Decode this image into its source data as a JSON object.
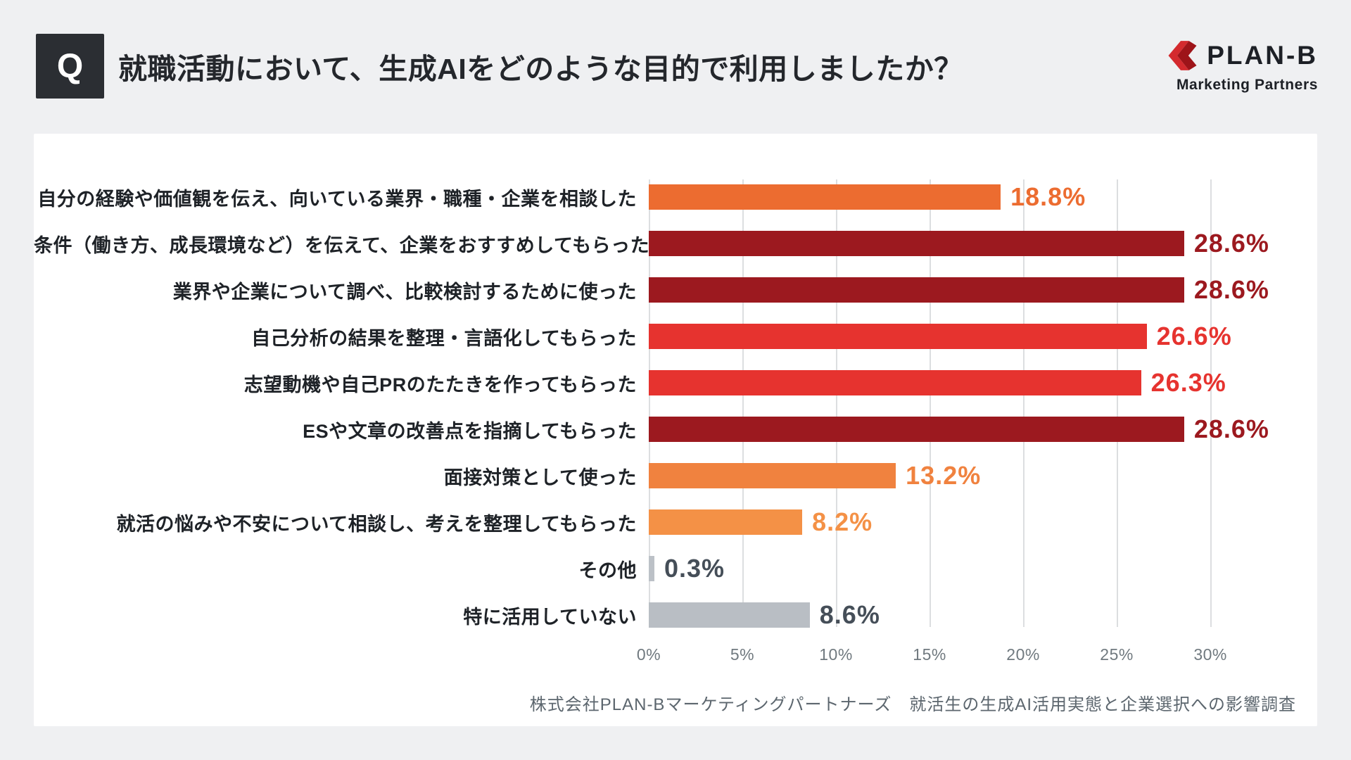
{
  "header": {
    "q_label": "Q",
    "title": "就職活動において、生成AIをどのような目的で利用しましたか？"
  },
  "logo": {
    "name": "PLAN-B",
    "subtitle": "Marketing Partners",
    "icon": "double-chevron-left",
    "accent": "#D42A2E",
    "accent_dark": "#9E1419"
  },
  "chart_data": {
    "type": "bar",
    "orientation": "horizontal",
    "unit": "%",
    "xlim": [
      0,
      35.71
    ],
    "grid": true,
    "ticks": [
      0,
      5,
      10,
      15,
      20,
      25,
      30
    ],
    "tick_labels": [
      "0%",
      "5%",
      "10%",
      "15%",
      "20%",
      "25%",
      "30%"
    ],
    "rows": [
      {
        "label": "自分の経験や価値観を伝え、向いている業界・職種・企業を相談した",
        "value": 18.8,
        "value_label": "18.8%",
        "color": "#EC6C30",
        "value_color": "#EC6C30"
      },
      {
        "label": "条件（働き方、成長環境など）を伝えて、企業をおすすめしてもらった",
        "value": 28.6,
        "value_label": "28.6%",
        "color": "#9C191F",
        "value_color": "#9C191F"
      },
      {
        "label": "業界や企業について調べ、比較検討するために使った",
        "value": 28.6,
        "value_label": "28.6%",
        "color": "#9C191F",
        "value_color": "#9C191F"
      },
      {
        "label": "自己分析の結果を整理・言語化してもらった",
        "value": 26.6,
        "value_label": "26.6%",
        "color": "#E6332F",
        "value_color": "#E6332F"
      },
      {
        "label": "志望動機や自己PRのたたきを作ってもらった",
        "value": 26.3,
        "value_label": "26.3%",
        "color": "#E6332F",
        "value_color": "#E6332F"
      },
      {
        "label": "ESや文章の改善点を指摘してもらった",
        "value": 28.6,
        "value_label": "28.6%",
        "color": "#9C191F",
        "value_color": "#9C191F"
      },
      {
        "label": "面接対策として使った",
        "value": 13.2,
        "value_label": "13.2%",
        "color": "#F0823F",
        "value_color": "#F0823F"
      },
      {
        "label": "就活の悩みや不安について相談し、考えを整理してもらった",
        "value": 8.2,
        "value_label": "8.2%",
        "color": "#F49146",
        "value_color": "#F49146"
      },
      {
        "label": "その他",
        "value": 0.3,
        "value_label": "0.3%",
        "color": "#BCC1C7",
        "value_color": "#454E58"
      },
      {
        "label": "特に活用していない",
        "value": 8.6,
        "value_label": "8.6%",
        "color": "#B9BEC4",
        "value_color": "#454E58"
      }
    ]
  },
  "footer": {
    "source": "株式会社PLAN-Bマーケティングパートナーズ　就活生の生成AI活用実態と企業選択への影響調査"
  }
}
